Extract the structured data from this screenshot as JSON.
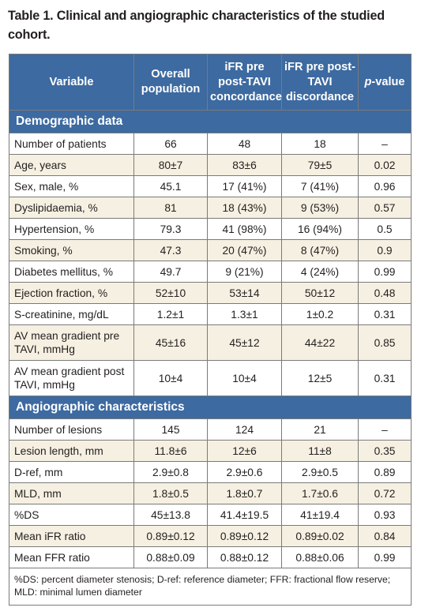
{
  "caption": "Table 1. Clinical and angiographic characteristics of the studied cohort.",
  "headers": {
    "variable": "Variable",
    "overall": "Overall population",
    "concordance": "iFR pre post-TAVI concordance",
    "discordance": "iFR pre post-TAVI discordance",
    "p_italic": "p",
    "p_rest": "-value"
  },
  "sections": [
    {
      "title": "Demographic data",
      "rows": [
        [
          "Number of patients",
          "66",
          "48",
          "18",
          "–"
        ],
        [
          "Age, years",
          "80±7",
          "83±6",
          "79±5",
          "0.02"
        ],
        [
          "Sex, male, %",
          "45.1",
          "17 (41%)",
          "7 (41%)",
          "0.96"
        ],
        [
          "Dyslipidaemia, %",
          "81",
          "18 (43%)",
          "9 (53%)",
          "0.57"
        ],
        [
          "Hypertension, %",
          "79.3",
          "41 (98%)",
          "16 (94%)",
          "0.5"
        ],
        [
          "Smoking, %",
          "47.3",
          "20 (47%)",
          "8 (47%)",
          "0.9"
        ],
        [
          "Diabetes mellitus, %",
          "49.7",
          "9 (21%)",
          "4 (24%)",
          "0.99"
        ],
        [
          "Ejection fraction, %",
          "52±10",
          "53±14",
          "50±12",
          "0.48"
        ],
        [
          "S-creatinine, mg/dL",
          "1.2±1",
          "1.3±1",
          "1±0.2",
          "0.31"
        ],
        [
          "AV mean gradient pre TAVI, mmHg",
          "45±16",
          "45±12",
          "44±22",
          "0.85"
        ],
        [
          "AV mean gradient post TAVI, mmHg",
          "10±4",
          "10±4",
          "12±5",
          "0.31"
        ]
      ]
    },
    {
      "title": "Angiographic characteristics",
      "rows": [
        [
          "Number of lesions",
          "145",
          "124",
          "21",
          "–"
        ],
        [
          "Lesion length, mm",
          "11.8±6",
          "12±6",
          "11±8",
          "0.35"
        ],
        [
          "D-ref, mm",
          "2.9±0.8",
          "2.9±0.6",
          "2.9±0.5",
          "0.89"
        ],
        [
          "MLD, mm",
          "1.8±0.5",
          "1.8±0.7",
          "1.7±0.6",
          "0.72"
        ],
        [
          "%DS",
          "45±13.8",
          "41.4±19.5",
          "41±19.4",
          "0.93"
        ],
        [
          "Mean iFR ratio",
          "0.89±0.12",
          "0.89±0.12",
          "0.89±0.02",
          "0.84"
        ],
        [
          "Mean FFR ratio",
          "0.88±0.09",
          "0.88±0.12",
          "0.88±0.06",
          "0.99"
        ]
      ]
    }
  ],
  "footnote": "%DS: percent diameter stenosis; D-ref: reference diameter; FFR: fractional flow reserve; MLD: minimal lumen diameter"
}
